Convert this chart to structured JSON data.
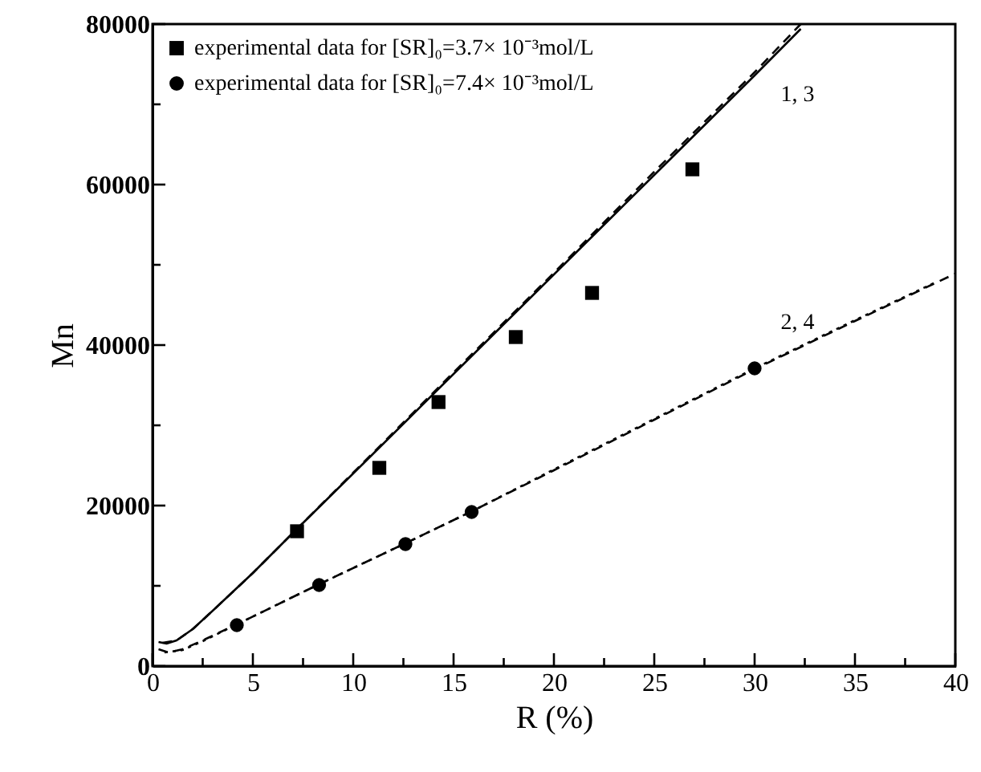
{
  "chart_data": {
    "type": "scatter",
    "xlabel": "R (%)",
    "ylabel": "Mn",
    "xlim": [
      0,
      40
    ],
    "ylim": [
      0,
      80000
    ],
    "xticks": [
      0,
      {
        "value": 2.5,
        "label": null
      },
      5,
      {
        "value": 7.5,
        "label": null
      },
      10,
      {
        "value": 12.5,
        "label": null
      },
      15,
      {
        "value": 17.5,
        "label": null
      },
      20,
      {
        "value": 22.5,
        "label": null
      },
      25,
      {
        "value": 27.5,
        "label": null
      },
      30,
      {
        "value": 32.5,
        "label": null
      },
      35,
      {
        "value": 37.5,
        "label": null
      },
      40
    ],
    "yticks": [
      0,
      {
        "value": 10000,
        "label": null
      },
      20000,
      {
        "value": 30000,
        "label": null
      },
      40000,
      {
        "value": 50000,
        "label": null
      },
      60000,
      {
        "value": 70000,
        "label": null
      },
      80000
    ],
    "grid": false,
    "legend": "top left",
    "series": [
      {
        "type": "line",
        "color": "#000000",
        "line_style": "solid",
        "x": [
          0.3,
          0.7,
          1.2,
          2,
          3,
          5,
          7.2,
          10,
          15,
          20,
          25,
          30,
          32.3
        ],
        "values": [
          3000,
          2800,
          3200,
          4600,
          6900,
          11600,
          17100,
          24000,
          36400,
          48800,
          61200,
          73600,
          79400
        ]
      },
      {
        "type": "line",
        "color": "#000000",
        "line_style": "dashed",
        "x": [
          0.5,
          1.2,
          2,
          3,
          5,
          7.2,
          10,
          15,
          20,
          25,
          30,
          32.3
        ],
        "values": [
          2900,
          3200,
          4600,
          6900,
          11600,
          17100,
          24100,
          36600,
          49000,
          61600,
          74000,
          80000
        ]
      },
      {
        "type": "line",
        "color": "#000000",
        "line_style": "dashed",
        "x": [
          0.3,
          0.8,
          1.5,
          2.5,
          4.2,
          8.3,
          12.6,
          16,
          20,
          25,
          30,
          35,
          40
        ],
        "values": [
          2100,
          1700,
          2100,
          3200,
          5200,
          10200,
          15300,
          19400,
          24400,
          30700,
          37000,
          43000,
          48900
        ]
      },
      {
        "type": "line",
        "color": "#000000",
        "line_style": "dotted",
        "x": [
          0.6,
          1.5,
          2.5,
          4.2,
          8.3,
          12.6,
          16,
          20,
          25,
          30,
          35,
          39
        ],
        "values": [
          1700,
          2000,
          3100,
          5200,
          10200,
          15300,
          19400,
          24500,
          30800,
          37100,
          43100,
          47800
        ]
      },
      {
        "name": "experimental data for [SR]₀=3.7× 10⁻³mol/L",
        "color": "#000000",
        "marker": "square",
        "x": [
          7.2,
          11.3,
          14.25,
          18.1,
          21.9,
          26.9
        ],
        "values": [
          16800,
          24700,
          32900,
          41000,
          46500,
          61900
        ]
      },
      {
        "name": "experimental data for [SR]₀=7.4× 10⁻³mol/L",
        "color": "#000000",
        "marker": "circle",
        "x": [
          4.2,
          8.3,
          12.6,
          15.9,
          30.0
        ],
        "values": [
          5100,
          10100,
          15200,
          19200,
          37100
        ]
      }
    ],
    "annotations": [
      {
        "text": "1, 3",
        "x": 30.5,
        "y": 74800
      },
      {
        "text": "2, 4",
        "x": 30.5,
        "y": 37600
      }
    ]
  }
}
